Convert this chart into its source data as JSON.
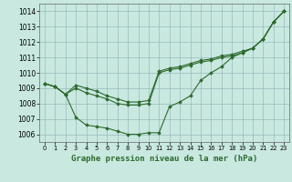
{
  "xlabel": "Graphe pression niveau de la mer (hPa)",
  "ylim": [
    1005.5,
    1014.5
  ],
  "xlim": [
    -0.5,
    23.5
  ],
  "yticks": [
    1006,
    1007,
    1008,
    1009,
    1010,
    1011,
    1012,
    1013,
    1014
  ],
  "xticks": [
    0,
    1,
    2,
    3,
    4,
    5,
    6,
    7,
    8,
    9,
    10,
    11,
    12,
    13,
    14,
    15,
    16,
    17,
    18,
    19,
    20,
    21,
    22,
    23
  ],
  "bg_color": "#c8e8e0",
  "line_color": "#2d6a2d",
  "grid_color": "#99bbbb",
  "lines": [
    [
      1009.3,
      1009.1,
      1008.6,
      1007.1,
      1006.6,
      1006.5,
      1006.4,
      1006.2,
      1006.0,
      1006.0,
      1006.1,
      1006.1,
      1007.8,
      1008.1,
      1008.5,
      1009.5,
      1010.0,
      1010.4,
      1011.0,
      1011.3,
      1011.6,
      1012.2,
      1013.3,
      1014.0
    ],
    [
      1009.3,
      1009.1,
      1008.6,
      1009.0,
      1008.7,
      1008.5,
      1008.3,
      1008.0,
      1007.9,
      1007.9,
      1008.0,
      1010.0,
      1010.2,
      1010.3,
      1010.5,
      1010.7,
      1010.8,
      1011.0,
      1011.1,
      1011.3,
      1011.6,
      1012.2,
      1013.3,
      1014.0
    ],
    [
      1009.3,
      1009.1,
      1008.6,
      1009.2,
      1009.0,
      1008.8,
      1008.5,
      1008.3,
      1008.1,
      1008.1,
      1008.2,
      1010.1,
      1010.3,
      1010.4,
      1010.6,
      1010.8,
      1010.9,
      1011.1,
      1011.2,
      1011.4,
      1011.6,
      1012.2,
      1013.3,
      1014.0
    ]
  ],
  "marker": "D",
  "marker_size": 1.8,
  "line_width": 0.8,
  "tick_fontsize": 5.5,
  "label_fontsize": 6.5
}
